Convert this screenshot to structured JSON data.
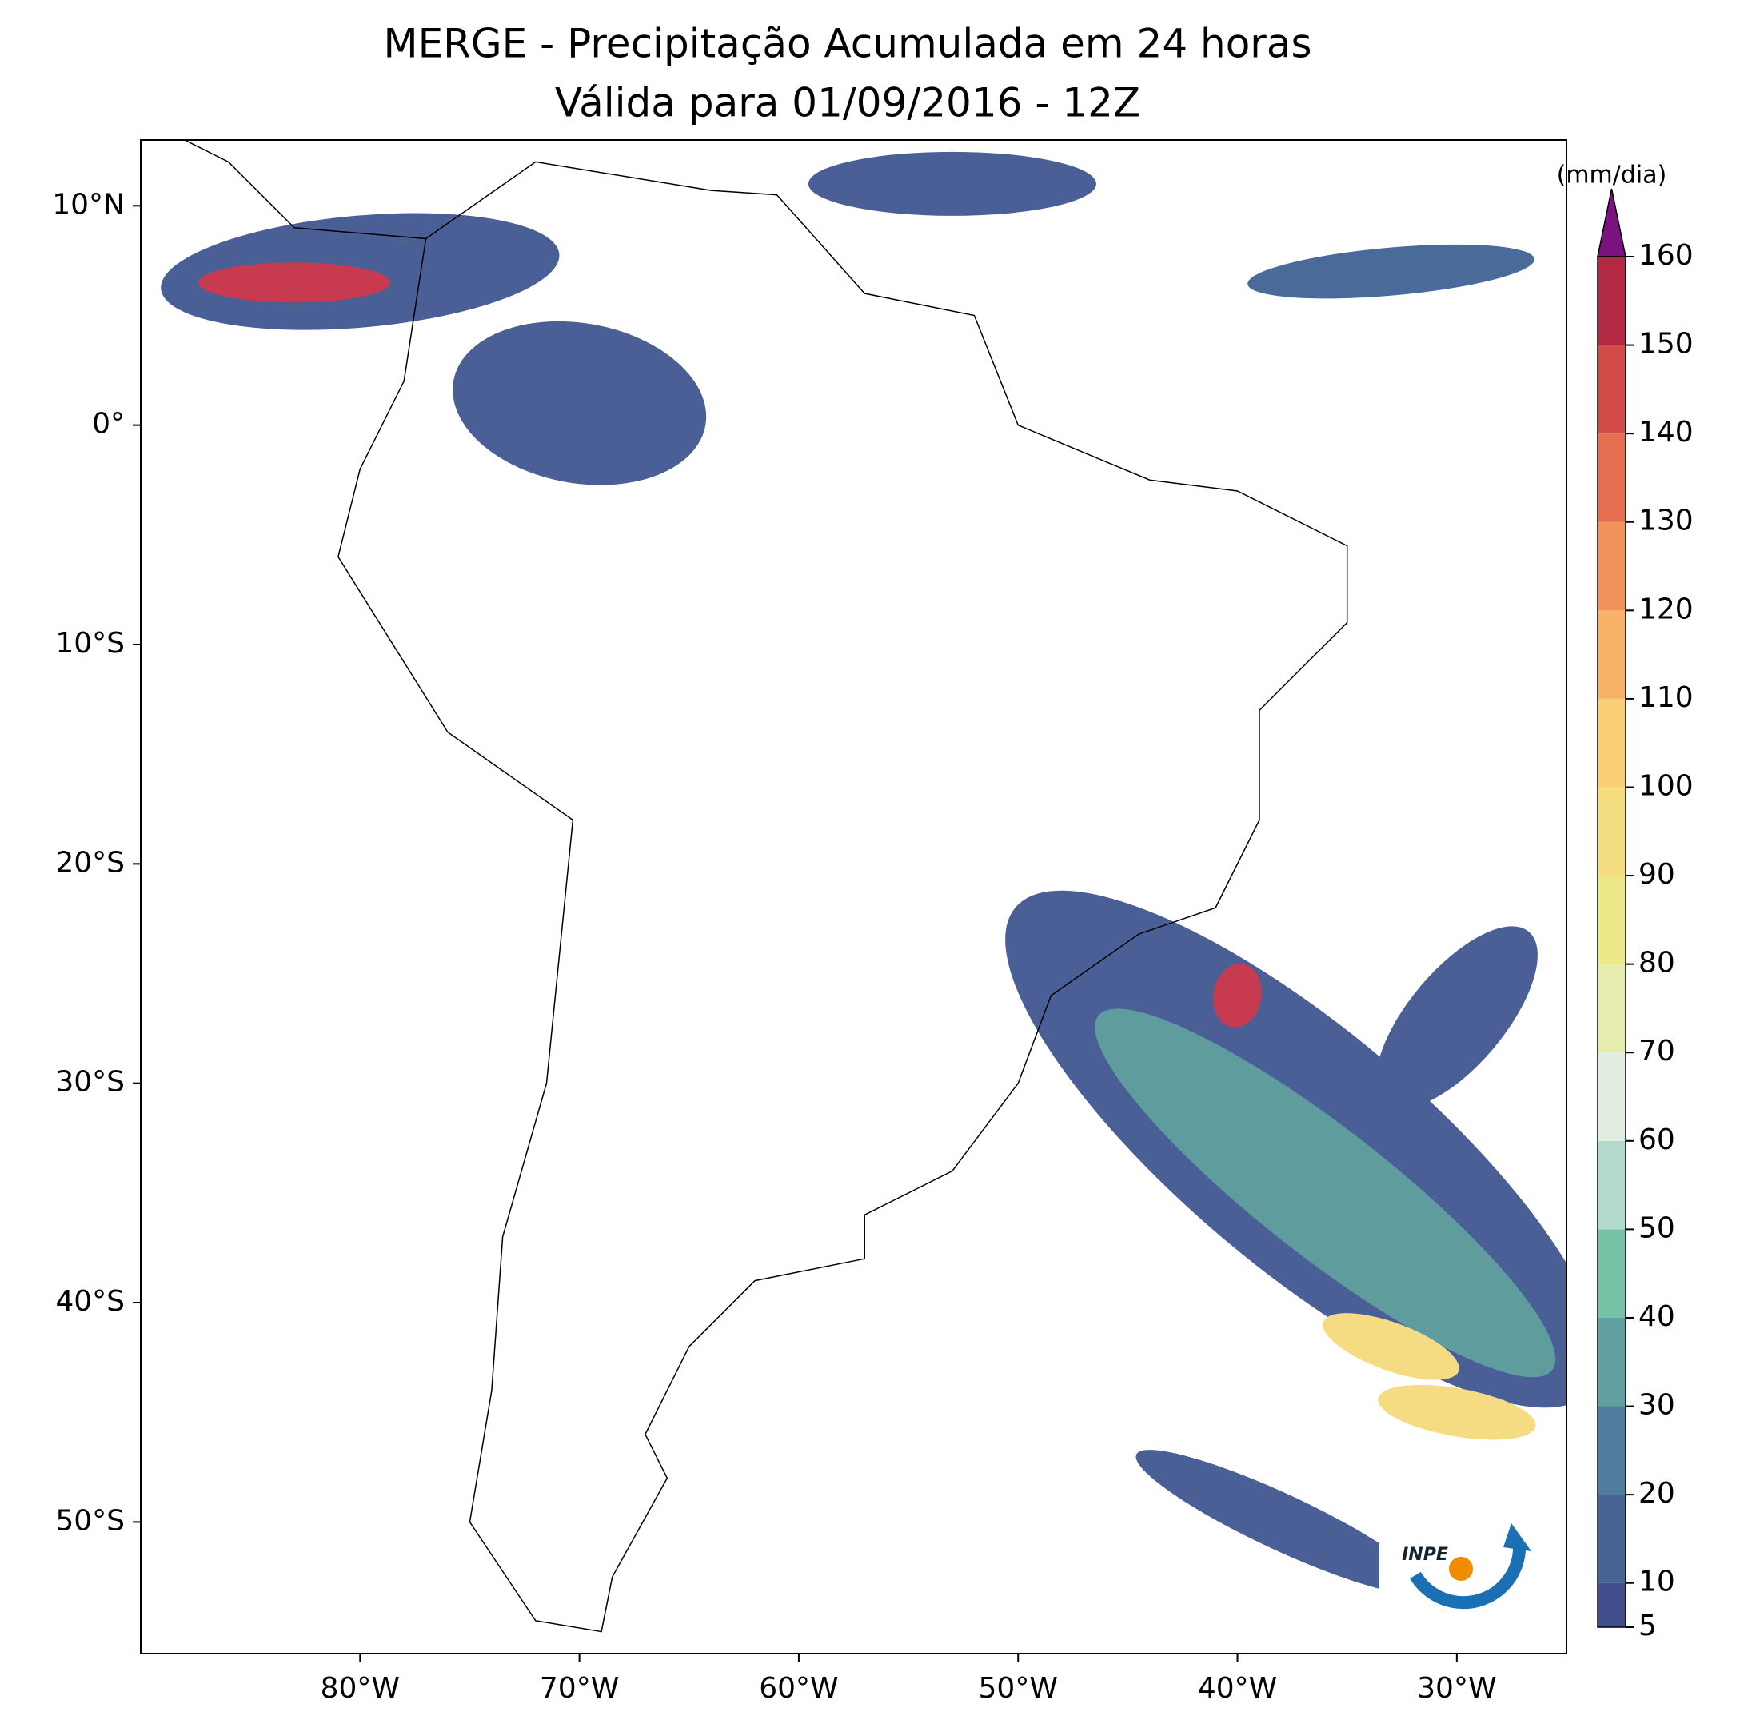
{
  "map": {
    "title": [
      "MERGE - Precipitação Acumulada em 24 horas",
      "Válida para 01/09/2016 - 12Z"
    ],
    "xlim": [
      -90,
      -25
    ],
    "ylim": [
      -56,
      13
    ],
    "xticks": [
      {
        "value": -80,
        "label": "80°W"
      },
      {
        "value": -70,
        "label": "70°W"
      },
      {
        "value": -60,
        "label": "60°W"
      },
      {
        "value": -50,
        "label": "50°W"
      },
      {
        "value": -40,
        "label": "40°W"
      },
      {
        "value": -30,
        "label": "30°W"
      }
    ],
    "yticks": [
      {
        "value": 10,
        "label": "10°N"
      },
      {
        "value": 0,
        "label": "0°"
      },
      {
        "value": -10,
        "label": "10°S"
      },
      {
        "value": -20,
        "label": "20°S"
      },
      {
        "value": -30,
        "label": "30°S"
      },
      {
        "value": -40,
        "label": "40°S"
      },
      {
        "value": -50,
        "label": "50°S"
      }
    ],
    "colorbar": {
      "label": "(mm/dia)",
      "lim": [
        5,
        160
      ],
      "ticks": [
        5,
        10,
        20,
        30,
        40,
        50,
        60,
        70,
        80,
        90,
        100,
        110,
        120,
        130,
        140,
        150,
        160
      ],
      "colors": [
        "#3f4a8a",
        "#4f7aa0",
        "#6fbfa0",
        "#e0eee8",
        "#eaea8a",
        "#f9d77a",
        "#f6a05e",
        "#e05a4a",
        "#a3173f"
      ],
      "extend_color": "#7a1280"
    },
    "logo": "INPE"
  }
}
